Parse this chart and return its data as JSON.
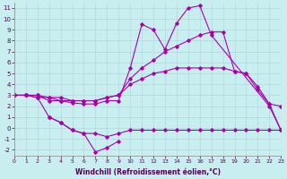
{
  "background_color": "#c8eef0",
  "grid_color": "#b0d8da",
  "line_color": "#aa00aa",
  "xlabel": "Windchill (Refroidissement éolien,°C)",
  "xlim": [
    0,
    23
  ],
  "ylim": [
    -2.5,
    11.5
  ],
  "xticks": [
    0,
    1,
    2,
    3,
    4,
    5,
    6,
    7,
    8,
    9,
    10,
    11,
    12,
    13,
    14,
    15,
    16,
    17,
    18,
    19,
    20,
    21,
    22,
    23
  ],
  "yticks": [
    -2,
    -1,
    0,
    1,
    2,
    3,
    4,
    5,
    6,
    7,
    8,
    9,
    10,
    11
  ],
  "line1_x": [
    0,
    1,
    2,
    3,
    4,
    5,
    6,
    7,
    8,
    9,
    10,
    11,
    12,
    13,
    14,
    15,
    16,
    17,
    22,
    23
  ],
  "line1_y": [
    3.0,
    3.0,
    2.8,
    2.8,
    2.5,
    2.3,
    2.2,
    2.2,
    2.5,
    2.5,
    5.5,
    9.5,
    9.0,
    7.2,
    9.6,
    11.0,
    11.2,
    8.5,
    2.0,
    -0.2
  ],
  "line2_x": [
    0,
    1,
    2,
    3,
    4,
    5,
    6,
    7,
    8,
    9,
    10,
    11,
    12,
    13,
    14,
    15,
    16,
    17,
    18,
    19,
    20,
    21,
    22,
    23
  ],
  "line2_y": [
    3.0,
    3.0,
    2.8,
    1.0,
    0.5,
    -0.2,
    -0.5,
    -0.5,
    -0.8,
    -0.5,
    -0.2,
    -0.2,
    -0.2,
    -0.2,
    -0.2,
    -0.2,
    -0.2,
    -0.2,
    -0.2,
    -0.2,
    -0.2,
    -0.2,
    -0.2,
    -0.2
  ],
  "line3_x": [
    0,
    1,
    2,
    3,
    4,
    5,
    6,
    7,
    8,
    9,
    10,
    11,
    12,
    13,
    14,
    15,
    16,
    17,
    18,
    19,
    20,
    21,
    22,
    23
  ],
  "line3_y": [
    3.0,
    3.0,
    3.0,
    2.8,
    2.8,
    2.5,
    2.5,
    2.5,
    2.8,
    3.0,
    4.5,
    5.5,
    6.2,
    7.0,
    7.5,
    8.0,
    8.5,
    8.8,
    8.8,
    5.2,
    5.0,
    3.8,
    2.2,
    2.0
  ],
  "line4_x": [
    0,
    1,
    2,
    3,
    4,
    5,
    6,
    7,
    8,
    9,
    10,
    11,
    12,
    13,
    14,
    15,
    16,
    17,
    18,
    19,
    20,
    21,
    22,
    23
  ],
  "line4_y": [
    3.0,
    3.0,
    3.0,
    2.5,
    2.5,
    2.5,
    2.5,
    2.5,
    2.8,
    3.0,
    4.0,
    4.5,
    5.0,
    5.2,
    5.5,
    5.5,
    5.5,
    5.5,
    5.5,
    5.2,
    5.0,
    3.5,
    2.2,
    -0.2
  ],
  "line5_x": [
    3,
    4,
    5,
    6,
    7,
    8,
    9
  ],
  "line5_y": [
    1.0,
    0.5,
    -0.2,
    -0.5,
    -2.2,
    -1.8,
    -1.2
  ]
}
